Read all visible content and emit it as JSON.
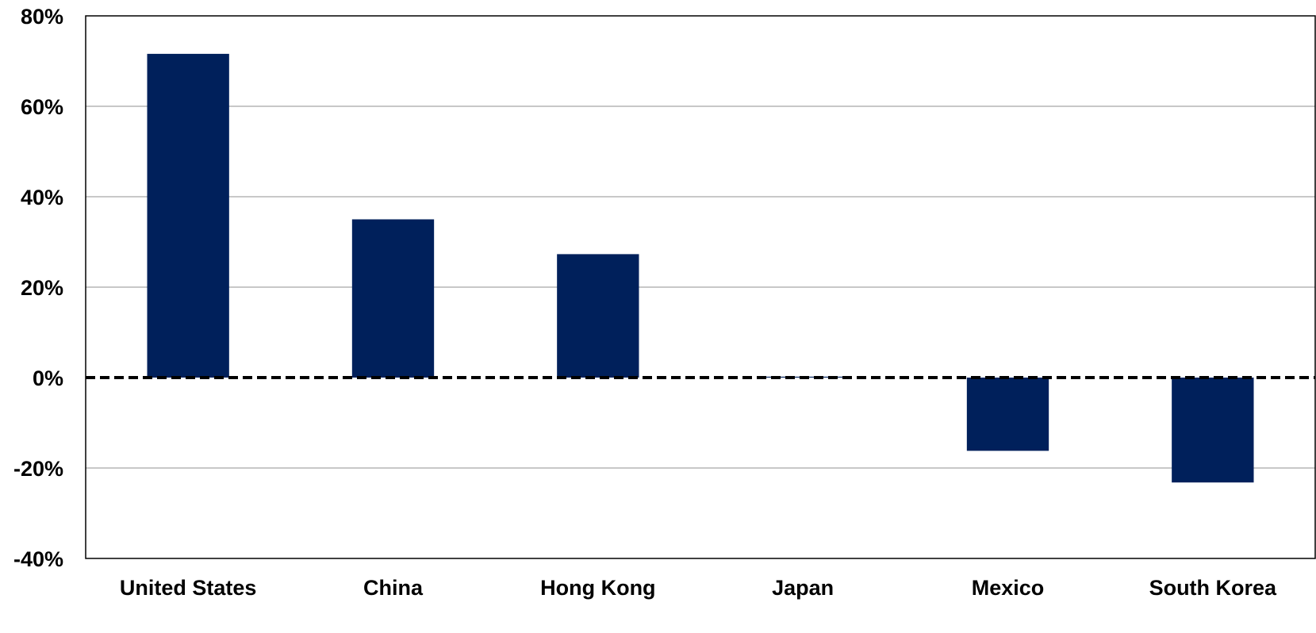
{
  "chart_data": {
    "type": "bar",
    "title": "",
    "xlabel": "",
    "ylabel": "",
    "categories": [
      "United States",
      "China",
      "Hong Kong",
      "Japan",
      "Mexico",
      "South Korea"
    ],
    "series": [
      {
        "values": [
          71.6,
          35.0,
          27.3,
          0.2,
          -16.2,
          -23.2
        ]
      }
    ],
    "ylim": [
      -40,
      80
    ],
    "yticks": [
      -40,
      -20,
      0,
      20,
      40,
      60,
      80
    ],
    "ytick_labels": [
      "-40%",
      "-20%",
      "0%",
      "20%",
      "40%",
      "60%",
      "80%"
    ],
    "grid": true,
    "zero_line": "dashed",
    "legend": "none",
    "colors": {
      "bar": "#00205b",
      "grid": "#a6a6a6",
      "axis": "#000000"
    }
  }
}
